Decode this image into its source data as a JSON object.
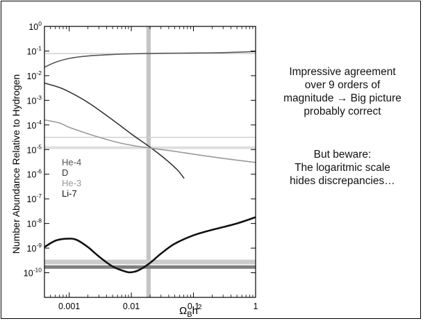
{
  "chart_data": {
    "type": "line",
    "title": "",
    "xlabel": "Ω_B h²",
    "ylabel": "Number Abundance Relative to Hydrogen",
    "x_scale": "log",
    "y_scale": "log",
    "xlim": [
      0.0004,
      1
    ],
    "ylim": [
      1e-11,
      1
    ],
    "x_ticks": [
      {
        "value": 0.001,
        "label": "0.001"
      },
      {
        "value": 0.01,
        "label": "0.01"
      },
      {
        "value": 0.1,
        "label": "0.1"
      },
      {
        "value": 1,
        "label": "1"
      }
    ],
    "y_ticks": [
      {
        "value": 1,
        "base": "10",
        "exp": "0"
      },
      {
        "value": 0.1,
        "base": "10",
        "exp": "-1"
      },
      {
        "value": 0.01,
        "base": "10",
        "exp": "-2"
      },
      {
        "value": 0.001,
        "base": "10",
        "exp": "-3"
      },
      {
        "value": 0.0001,
        "base": "10",
        "exp": "-4"
      },
      {
        "value": 1e-05,
        "base": "10",
        "exp": "-5"
      },
      {
        "value": 1e-06,
        "base": "10",
        "exp": "-6"
      },
      {
        "value": 1e-07,
        "base": "10",
        "exp": "-7"
      },
      {
        "value": 1e-08,
        "base": "10",
        "exp": "-8"
      },
      {
        "value": 1e-09,
        "base": "10",
        "exp": "-9"
      },
      {
        "value": 1e-10,
        "base": "10",
        "exp": "-10"
      }
    ],
    "legend_placement": "left-middle",
    "series": [
      {
        "name": "He-4",
        "color": "#555555",
        "width": 1.6,
        "points": [
          [
            0.0004,
            0.022
          ],
          [
            0.0006,
            0.035
          ],
          [
            0.001,
            0.05
          ],
          [
            0.002,
            0.063
          ],
          [
            0.005,
            0.072
          ],
          [
            0.01,
            0.077
          ],
          [
            0.03,
            0.081
          ],
          [
            0.1,
            0.083
          ],
          [
            0.3,
            0.086
          ],
          [
            1,
            0.095
          ]
        ]
      },
      {
        "name": "D",
        "color": "#333333",
        "width": 1.6,
        "points": [
          [
            0.0004,
            0.005
          ],
          [
            0.0007,
            0.0033
          ],
          [
            0.001,
            0.0022
          ],
          [
            0.002,
            0.00082
          ],
          [
            0.005,
            0.00016
          ],
          [
            0.01,
            4.3e-05
          ],
          [
            0.02,
            1.25e-05
          ],
          [
            0.035,
            4.2e-06
          ],
          [
            0.055,
            1.5e-06
          ],
          [
            0.07,
            7e-07
          ]
        ]
      },
      {
        "name": "He-3",
        "color": "#999999",
        "width": 1.6,
        "points": [
          [
            0.0004,
            0.00016
          ],
          [
            0.0007,
            0.00012
          ],
          [
            0.001,
            8e-05
          ],
          [
            0.002,
            4.4e-05
          ],
          [
            0.005,
            2.2e-05
          ],
          [
            0.01,
            1.5e-05
          ],
          [
            0.02,
            1.15e-05
          ],
          [
            0.05,
            8.5e-06
          ],
          [
            0.1,
            6.5e-06
          ],
          [
            0.3,
            4.4e-06
          ],
          [
            1,
            3e-06
          ]
        ]
      },
      {
        "name": "Li-7",
        "color": "#111111",
        "width": 2.6,
        "points": [
          [
            0.0004,
            1.1e-09
          ],
          [
            0.0006,
            2e-09
          ],
          [
            0.0009,
            2.4e-09
          ],
          [
            0.0013,
            2.2e-09
          ],
          [
            0.002,
            1.1e-09
          ],
          [
            0.003,
            4.6e-10
          ],
          [
            0.005,
            1.8e-10
          ],
          [
            0.008,
            1.12e-10
          ],
          [
            0.01,
            1.05e-10
          ],
          [
            0.013,
            1.25e-10
          ],
          [
            0.02,
            2.5e-10
          ],
          [
            0.03,
            6e-10
          ],
          [
            0.05,
            1.5e-09
          ],
          [
            0.1,
            3.3e-09
          ],
          [
            0.2,
            5.5e-09
          ],
          [
            0.5,
            1e-08
          ],
          [
            1,
            1.8e-08
          ]
        ]
      }
    ],
    "observation_bands": [
      {
        "axis": "x",
        "from": 0.0175,
        "to": 0.0205,
        "color": "#c4c4c4"
      },
      {
        "axis": "y",
        "from": 0.079,
        "to": 0.083,
        "color": "#cfcfcf"
      },
      {
        "axis": "y",
        "from": 3e-05,
        "to": 3.3e-05,
        "color": "#cfcfcf"
      },
      {
        "axis": "y",
        "from": 1.05e-05,
        "to": 1.35e-05,
        "color": "#dedede"
      },
      {
        "axis": "y",
        "from": 2.2e-10,
        "to": 3.4e-10,
        "color": "#cccccc"
      },
      {
        "axis": "y",
        "from": 1.45e-10,
        "to": 2e-10,
        "color": "#7f7f7f"
      }
    ]
  },
  "notes": {
    "first": [
      "Impressive agreement",
      "over 9 orders of",
      "magnitude → Big picture",
      "probably correct"
    ],
    "second": [
      "But beware:",
      "The logaritmic scale",
      "hides discrepancies…"
    ]
  }
}
